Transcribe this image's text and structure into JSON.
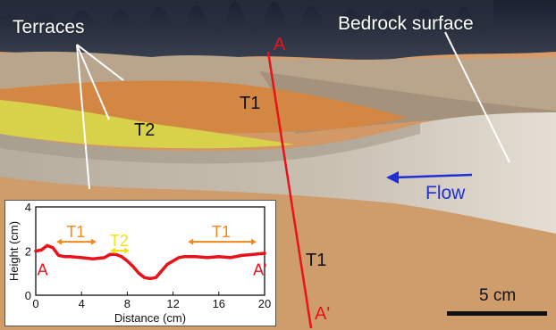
{
  "labels": {
    "terraces": "Terraces",
    "bedrock_surface": "Bedrock surface",
    "point_a": "A",
    "point_a_prime": "A'",
    "t1_upper": "T1",
    "t2": "T2",
    "t1_lower": "T1",
    "flow": "Flow",
    "scale_bar": "5 cm"
  },
  "colors": {
    "profile_line": "#e8131a",
    "flow_arrow": "#1f2fd6",
    "t1_marker": "#f08a1c",
    "t2_marker": "#f2e312"
  },
  "chart_data": {
    "type": "line",
    "xlabel": "Distance (cm)",
    "ylabel": "Height (cm)",
    "xlim": [
      0,
      20
    ],
    "ylim": [
      0,
      4
    ],
    "xticks": [
      0,
      4,
      8,
      12,
      16,
      20
    ],
    "yticks": [
      0,
      2,
      4
    ],
    "grid": false,
    "series": [
      {
        "color": "#e8131a",
        "x": [
          0,
          0.5,
          1.0,
          1.5,
          2.0,
          2.5,
          3.0,
          4.0,
          5.0,
          6.0,
          6.5,
          7.0,
          7.5,
          8.0,
          8.5,
          9.0,
          9.5,
          10.0,
          10.5,
          11.0,
          11.5,
          12.0,
          12.5,
          13.0,
          14.0,
          15.0,
          16.0,
          17.0,
          18.0,
          19.0,
          20.0
        ],
        "y": [
          2.0,
          2.05,
          2.25,
          2.15,
          1.8,
          1.75,
          1.75,
          1.7,
          1.65,
          1.7,
          1.85,
          1.85,
          1.75,
          1.55,
          1.3,
          1.0,
          0.8,
          0.75,
          0.8,
          1.1,
          1.4,
          1.55,
          1.7,
          1.75,
          1.75,
          1.7,
          1.75,
          1.7,
          1.8,
          1.85,
          1.9
        ]
      }
    ],
    "annotations": [
      {
        "text": "A",
        "x": 0.6,
        "y": 0.9,
        "color": "#e8131a"
      },
      {
        "text": "A'",
        "x": 19.6,
        "y": 0.9,
        "color": "#e8131a"
      },
      {
        "text": "T1",
        "x": 3.5,
        "y": 2.5,
        "x_from": 1.8,
        "x_to": 5.3,
        "color": "#f08a1c"
      },
      {
        "text": "T2",
        "x": 7.3,
        "y": 2.1,
        "x_from": 6.5,
        "x_to": 8.2,
        "color": "#f2e312"
      },
      {
        "text": "T1",
        "x": 16.2,
        "y": 2.5,
        "x_from": 13.3,
        "x_to": 19.3,
        "color": "#f08a1c"
      }
    ]
  }
}
